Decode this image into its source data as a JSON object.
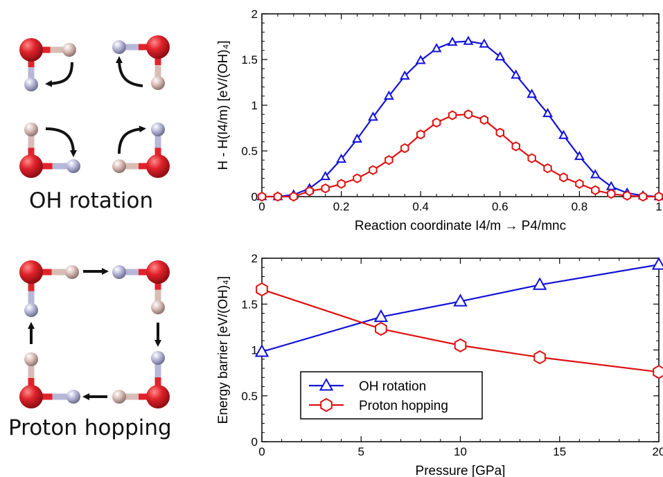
{
  "molecules": {
    "rotation_caption": "OH rotation",
    "hopping_caption": "Proton hopping",
    "colors": {
      "oxygen": "#d9232b",
      "hydrogen_a": "#c9a9a3",
      "hydrogen_b": "#a9a9cc",
      "arrow": "#111111"
    }
  },
  "chart_data": [
    {
      "type": "line",
      "xlabel": "Reaction coordinate I4/m → P4/mnc",
      "ylabel": "H - H(I4/m) [eV/(OH)₄]",
      "xlim": [
        0,
        1
      ],
      "ylim": [
        0,
        2
      ],
      "xticks": [
        "0",
        "0.2",
        "0.4",
        "0.6",
        "0.8",
        "1"
      ],
      "yticks": [
        "0",
        "0.5",
        "1",
        "1.5",
        "2"
      ],
      "series": [
        {
          "marker": "triangle",
          "color": "#1010d8",
          "x": [
            0,
            0.04,
            0.08,
            0.12,
            0.16,
            0.2,
            0.24,
            0.28,
            0.32,
            0.36,
            0.4,
            0.44,
            0.48,
            0.52,
            0.56,
            0.6,
            0.64,
            0.68,
            0.72,
            0.76,
            0.8,
            0.84,
            0.88,
            0.92,
            0.96,
            1.0
          ],
          "values": [
            0,
            0,
            0.02,
            0.09,
            0.22,
            0.41,
            0.63,
            0.87,
            1.1,
            1.32,
            1.49,
            1.62,
            1.69,
            1.7,
            1.67,
            1.53,
            1.33,
            1.12,
            0.91,
            0.67,
            0.44,
            0.24,
            0.11,
            0.04,
            0.01,
            0
          ]
        },
        {
          "marker": "hexagon",
          "color": "#e01010",
          "x": [
            0,
            0.04,
            0.08,
            0.12,
            0.16,
            0.2,
            0.24,
            0.28,
            0.32,
            0.36,
            0.4,
            0.44,
            0.48,
            0.52,
            0.56,
            0.6,
            0.64,
            0.68,
            0.72,
            0.76,
            0.8,
            0.84,
            0.88,
            0.92,
            0.96,
            1.0
          ],
          "values": [
            0,
            0,
            0,
            0.06,
            0.09,
            0.14,
            0.2,
            0.29,
            0.4,
            0.53,
            0.68,
            0.81,
            0.89,
            0.9,
            0.84,
            0.7,
            0.55,
            0.42,
            0.31,
            0.21,
            0.14,
            0.07,
            0.03,
            0.01,
            0,
            0
          ]
        }
      ]
    },
    {
      "type": "line",
      "xlabel": "Pressure [GPa]",
      "ylabel": "Energy barrier [eV/(OH)₄]",
      "xlim": [
        0,
        20
      ],
      "ylim": [
        0,
        2
      ],
      "xticks": [
        "0",
        "5",
        "10",
        "15",
        "20"
      ],
      "yticks": [
        "0",
        "0.5",
        "1",
        "1.5",
        "2"
      ],
      "legend_position": "bottom-left",
      "series": [
        {
          "name": "OH rotation",
          "marker": "triangle",
          "color": "#1010d8",
          "x": [
            0,
            6,
            10,
            14,
            20
          ],
          "values": [
            0.98,
            1.36,
            1.53,
            1.71,
            1.93
          ]
        },
        {
          "name": "Proton hopping",
          "marker": "hexagon",
          "color": "#e01010",
          "x": [
            0,
            6,
            10,
            14,
            20
          ],
          "values": [
            1.66,
            1.23,
            1.05,
            0.92,
            0.76
          ]
        }
      ]
    }
  ]
}
